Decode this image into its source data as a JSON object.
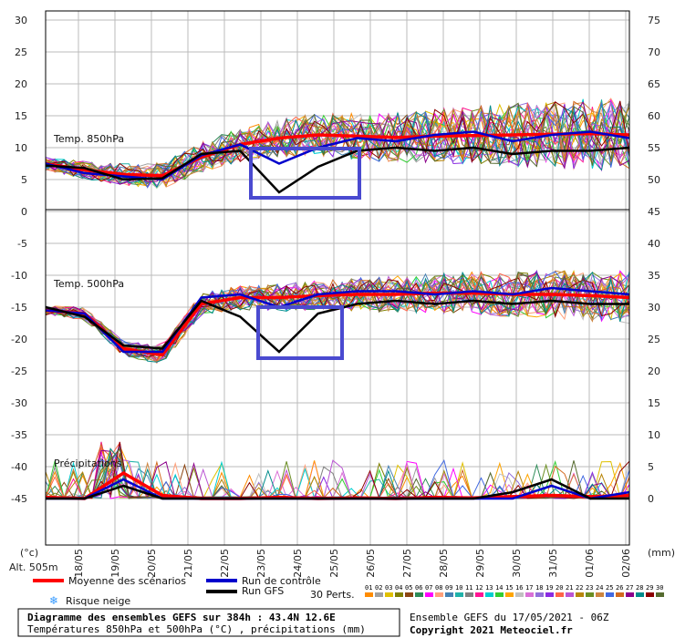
{
  "chart_data": {
    "type": "line",
    "x": [
      "18/05",
      "19/05",
      "20/05",
      "21/05",
      "22/05",
      "23/05",
      "24/05",
      "25/05",
      "26/05",
      "27/05",
      "28/05",
      "29/05",
      "30/05",
      "31/05",
      "01/06",
      "02/06"
    ],
    "panels": [
      {
        "label": "Temp. 850hPa",
        "ylim": [
          0,
          30
        ],
        "ylim_right": [
          45,
          75
        ],
        "yticks_left": [
          "30",
          "25",
          "20",
          "15",
          "10",
          "5",
          "0"
        ],
        "yticks_right": [
          "75",
          "70",
          "65",
          "60",
          "55",
          "50",
          "45"
        ],
        "series": [
          {
            "name": "Moyenne des scénarios",
            "color": "#ff0000",
            "values": [
              7.5,
              6.5,
              5.8,
              5.6,
              8.5,
              10.5,
              11.5,
              12.0,
              11.8,
              11.6,
              11.8,
              11.9,
              12.0,
              12.1,
              12.2,
              12.0
            ]
          },
          {
            "name": "Run de contrôle",
            "color": "#0000cc",
            "values": [
              7.5,
              6.0,
              5.5,
              5.0,
              8.8,
              10.5,
              7.5,
              10.0,
              11.5,
              11.0,
              12.0,
              12.5,
              11.0,
              12.0,
              12.5,
              11.5
            ]
          },
          {
            "name": "Run GFS",
            "color": "#000000",
            "values": [
              7.2,
              6.8,
              5.0,
              5.2,
              9.0,
              9.5,
              3.0,
              7.0,
              9.5,
              10.0,
              9.5,
              10.0,
              9.0,
              9.5,
              9.5,
              10.0
            ]
          }
        ]
      },
      {
        "label": "Temp. 500hPa",
        "ylim": [
          -45,
          -10
        ],
        "ylim_right": [
          0,
          35
        ],
        "yticks_left": [
          "-5",
          "-10",
          "-15",
          "-20",
          "-25",
          "-30",
          "-35",
          "-40",
          "-45"
        ],
        "yticks_right": [
          "40",
          "35",
          "30",
          "25",
          "20",
          "15",
          "10",
          "5",
          "0"
        ],
        "series": [
          {
            "name": "Moyenne des scénarios",
            "color": "#ff0000",
            "values": [
              -15.5,
              -16.0,
              -21.5,
              -22.5,
              -14.5,
              -13.5,
              -13.5,
              -13.2,
              -13.0,
              -13.0,
              -12.8,
              -12.8,
              -13.0,
              -13.0,
              -13.2,
              -13.5
            ]
          },
          {
            "name": "Run de contrôle",
            "color": "#0000cc",
            "values": [
              -15.5,
              -16.0,
              -22.0,
              -22.0,
              -13.5,
              -13.0,
              -15.0,
              -13.0,
              -12.5,
              -12.5,
              -13.0,
              -12.5,
              -13.0,
              -12.0,
              -12.5,
              -13.0
            ]
          },
          {
            "name": "Run GFS",
            "color": "#000000",
            "values": [
              -15.0,
              -16.5,
              -21.0,
              -21.5,
              -14.0,
              -16.5,
              -22.0,
              -16.0,
              -14.5,
              -14.0,
              -14.5,
              -14.0,
              -14.5,
              -14.0,
              -14.5,
              -14.5
            ]
          }
        ]
      },
      {
        "label": "Précipitations",
        "unit": "mm",
        "series": [
          {
            "name": "Moyenne des scénarios",
            "color": "#ff0000",
            "values": [
              0.2,
              0,
              4,
              0.5,
              0,
              0,
              0.2,
              0,
              0.1,
              0,
              0.2,
              0.1,
              0.3,
              0.5,
              0.3,
              0.5
            ]
          },
          {
            "name": "Run de contrôle",
            "color": "#0000cc",
            "values": [
              0,
              0,
              3,
              0,
              0,
              0,
              0,
              0,
              0,
              0,
              0,
              0,
              0,
              2,
              0,
              1
            ]
          },
          {
            "name": "Run GFS",
            "color": "#000000",
            "values": [
              0,
              0,
              2,
              0,
              0,
              0,
              0,
              0,
              0,
              0,
              0,
              0,
              1,
              3,
              0,
              0
            ]
          }
        ]
      }
    ],
    "left_axis_label": "(°c)",
    "right_axis_label": "(mm)",
    "highlight_boxes": "blue rectangles around 23/05–25/05 on 850hPa and 500hPa panels"
  },
  "footer": {
    "alt": "Alt. 505m",
    "legend_mean": "Moyenne des scénarios",
    "legend_control": "Run de contrôle",
    "legend_gfs": "Run GFS",
    "legend_snow": "Risque neige",
    "perts_label": "30 Perts.",
    "perts_numbers": [
      "01",
      "02",
      "03",
      "04",
      "05",
      "06",
      "07",
      "08",
      "09",
      "10",
      "11",
      "12",
      "13",
      "14",
      "15",
      "16",
      "17",
      "18",
      "19",
      "20",
      "21",
      "22",
      "23",
      "24",
      "25",
      "26",
      "27",
      "28",
      "29",
      "30"
    ],
    "perts_colors": [
      "#ff8c00",
      "#a0a0a0",
      "#e0c000",
      "#808000",
      "#8b4513",
      "#2e8b57",
      "#ff00ff",
      "#ffa07a",
      "#4682b4",
      "#20b2aa",
      "#808080",
      "#ff1493",
      "#00ced1",
      "#32cd32",
      "#ffa500",
      "#c0c0c0",
      "#da70d6",
      "#9370db",
      "#8a2be2",
      "#ff6347",
      "#ba55d3",
      "#b8860b",
      "#6b8e23",
      "#cd853f",
      "#4169e1",
      "#d2691e",
      "#8b008b",
      "#008b8b",
      "#8b0000",
      "#556b2f"
    ],
    "title": "Diagramme des ensembles GEFS sur 384h : 43.4N 12.6E",
    "subtitle": "Températures 850hPa et 500hPa (°C) , précipitations (mm)",
    "run_info": "Ensemble GEFS du 17/05/2021 - 06Z",
    "copyright": "Copyright 2021 Meteociel.fr"
  }
}
